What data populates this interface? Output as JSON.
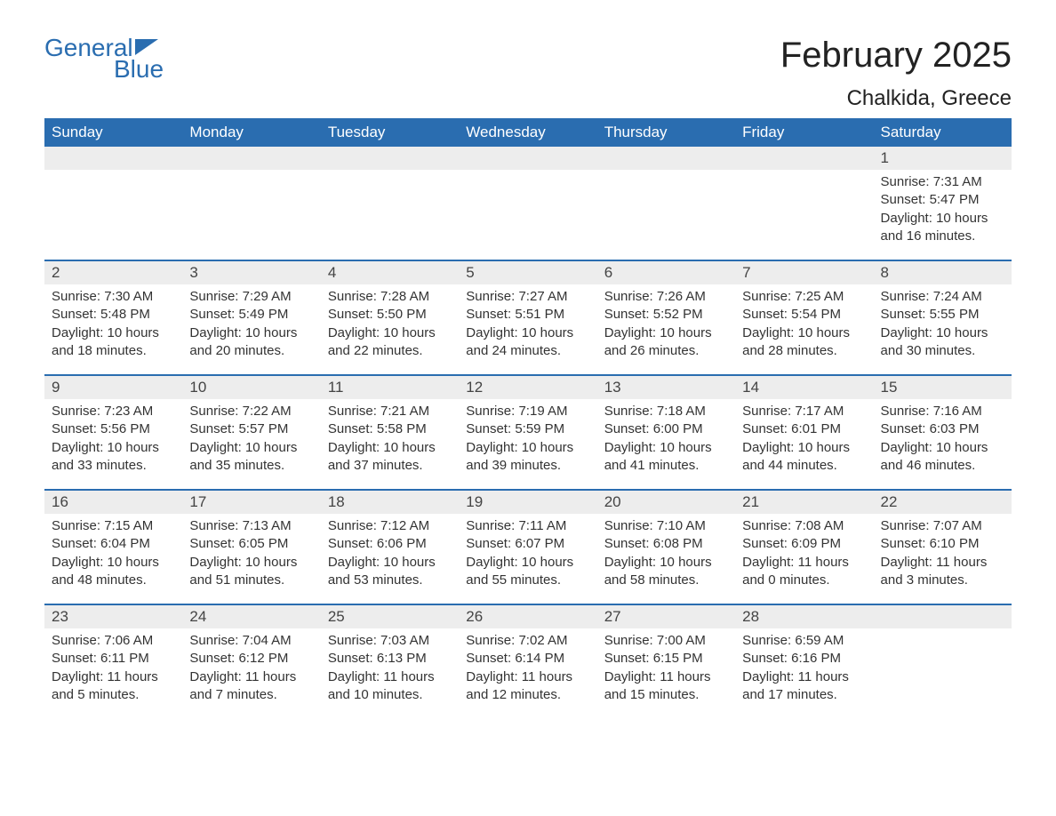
{
  "logo": {
    "text_top": "General",
    "text_bottom": "Blue",
    "color": "#2a6db0"
  },
  "title": "February 2025",
  "location": "Chalkida, Greece",
  "colors": {
    "header_bg": "#2a6db0",
    "header_text": "#ffffff",
    "daynum_bg": "#ededed",
    "text": "#333333",
    "divider": "#2a6db0",
    "page_bg": "#ffffff"
  },
  "typography": {
    "title_fontsize": 40,
    "location_fontsize": 24,
    "header_fontsize": 17,
    "daynum_fontsize": 17,
    "body_fontsize": 15,
    "font_family": "Arial"
  },
  "weekday_headers": [
    "Sunday",
    "Monday",
    "Tuesday",
    "Wednesday",
    "Thursday",
    "Friday",
    "Saturday"
  ],
  "labels": {
    "sunrise": "Sunrise:",
    "sunset": "Sunset:",
    "daylight": "Daylight:"
  },
  "weeks": [
    [
      {
        "empty": true
      },
      {
        "empty": true
      },
      {
        "empty": true
      },
      {
        "empty": true
      },
      {
        "empty": true
      },
      {
        "empty": true
      },
      {
        "day": "1",
        "sunrise": "7:31 AM",
        "sunset": "5:47 PM",
        "daylight": "10 hours and 16 minutes."
      }
    ],
    [
      {
        "day": "2",
        "sunrise": "7:30 AM",
        "sunset": "5:48 PM",
        "daylight": "10 hours and 18 minutes."
      },
      {
        "day": "3",
        "sunrise": "7:29 AM",
        "sunset": "5:49 PM",
        "daylight": "10 hours and 20 minutes."
      },
      {
        "day": "4",
        "sunrise": "7:28 AM",
        "sunset": "5:50 PM",
        "daylight": "10 hours and 22 minutes."
      },
      {
        "day": "5",
        "sunrise": "7:27 AM",
        "sunset": "5:51 PM",
        "daylight": "10 hours and 24 minutes."
      },
      {
        "day": "6",
        "sunrise": "7:26 AM",
        "sunset": "5:52 PM",
        "daylight": "10 hours and 26 minutes."
      },
      {
        "day": "7",
        "sunrise": "7:25 AM",
        "sunset": "5:54 PM",
        "daylight": "10 hours and 28 minutes."
      },
      {
        "day": "8",
        "sunrise": "7:24 AM",
        "sunset": "5:55 PM",
        "daylight": "10 hours and 30 minutes."
      }
    ],
    [
      {
        "day": "9",
        "sunrise": "7:23 AM",
        "sunset": "5:56 PM",
        "daylight": "10 hours and 33 minutes."
      },
      {
        "day": "10",
        "sunrise": "7:22 AM",
        "sunset": "5:57 PM",
        "daylight": "10 hours and 35 minutes."
      },
      {
        "day": "11",
        "sunrise": "7:21 AM",
        "sunset": "5:58 PM",
        "daylight": "10 hours and 37 minutes."
      },
      {
        "day": "12",
        "sunrise": "7:19 AM",
        "sunset": "5:59 PM",
        "daylight": "10 hours and 39 minutes."
      },
      {
        "day": "13",
        "sunrise": "7:18 AM",
        "sunset": "6:00 PM",
        "daylight": "10 hours and 41 minutes."
      },
      {
        "day": "14",
        "sunrise": "7:17 AM",
        "sunset": "6:01 PM",
        "daylight": "10 hours and 44 minutes."
      },
      {
        "day": "15",
        "sunrise": "7:16 AM",
        "sunset": "6:03 PM",
        "daylight": "10 hours and 46 minutes."
      }
    ],
    [
      {
        "day": "16",
        "sunrise": "7:15 AM",
        "sunset": "6:04 PM",
        "daylight": "10 hours and 48 minutes."
      },
      {
        "day": "17",
        "sunrise": "7:13 AM",
        "sunset": "6:05 PM",
        "daylight": "10 hours and 51 minutes."
      },
      {
        "day": "18",
        "sunrise": "7:12 AM",
        "sunset": "6:06 PM",
        "daylight": "10 hours and 53 minutes."
      },
      {
        "day": "19",
        "sunrise": "7:11 AM",
        "sunset": "6:07 PM",
        "daylight": "10 hours and 55 minutes."
      },
      {
        "day": "20",
        "sunrise": "7:10 AM",
        "sunset": "6:08 PM",
        "daylight": "10 hours and 58 minutes."
      },
      {
        "day": "21",
        "sunrise": "7:08 AM",
        "sunset": "6:09 PM",
        "daylight": "11 hours and 0 minutes."
      },
      {
        "day": "22",
        "sunrise": "7:07 AM",
        "sunset": "6:10 PM",
        "daylight": "11 hours and 3 minutes."
      }
    ],
    [
      {
        "day": "23",
        "sunrise": "7:06 AM",
        "sunset": "6:11 PM",
        "daylight": "11 hours and 5 minutes."
      },
      {
        "day": "24",
        "sunrise": "7:04 AM",
        "sunset": "6:12 PM",
        "daylight": "11 hours and 7 minutes."
      },
      {
        "day": "25",
        "sunrise": "7:03 AM",
        "sunset": "6:13 PM",
        "daylight": "11 hours and 10 minutes."
      },
      {
        "day": "26",
        "sunrise": "7:02 AM",
        "sunset": "6:14 PM",
        "daylight": "11 hours and 12 minutes."
      },
      {
        "day": "27",
        "sunrise": "7:00 AM",
        "sunset": "6:15 PM",
        "daylight": "11 hours and 15 minutes."
      },
      {
        "day": "28",
        "sunrise": "6:59 AM",
        "sunset": "6:16 PM",
        "daylight": "11 hours and 17 minutes."
      },
      {
        "empty": true
      }
    ]
  ]
}
